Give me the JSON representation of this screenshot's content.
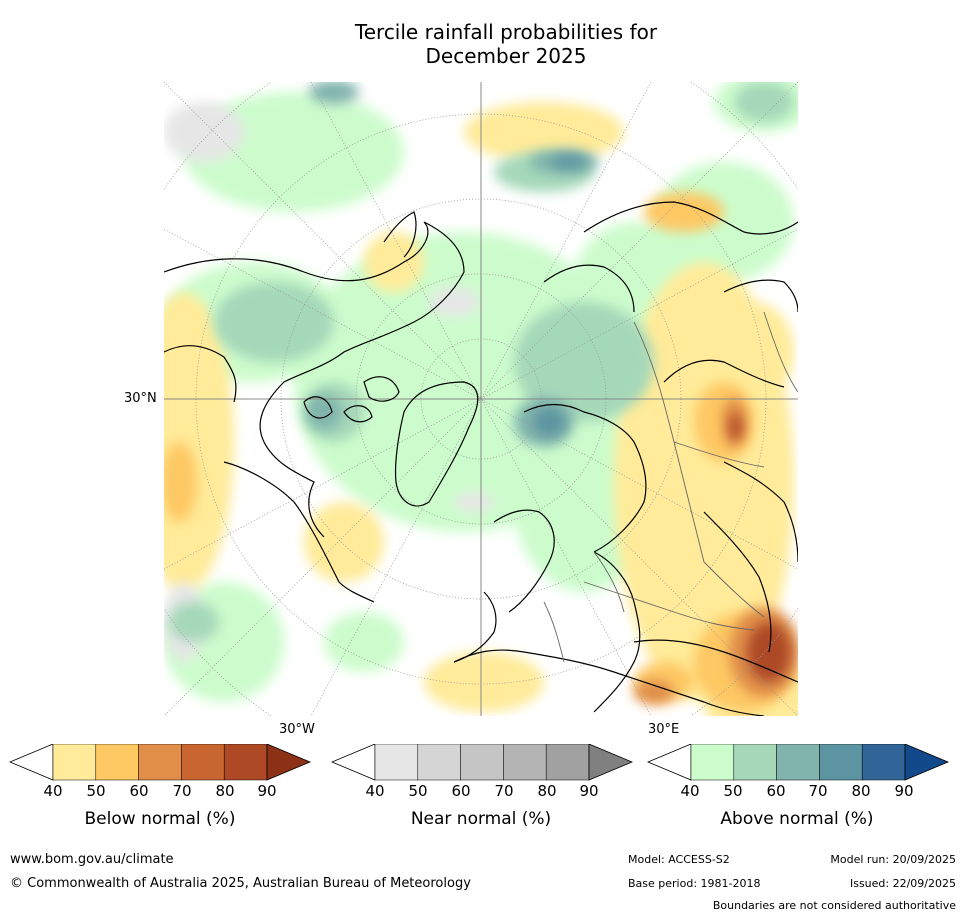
{
  "title": {
    "line1": "Tercile rainfall probabilities for",
    "line2": "December 2025"
  },
  "map": {
    "projection": "north-polar stereographic",
    "lat_labels": [
      "30°N"
    ],
    "lon_labels": [
      "30°W",
      "30°E"
    ]
  },
  "colorbars": [
    {
      "label": "Below normal (%)",
      "ticks": [
        "40",
        "50",
        "60",
        "70",
        "80",
        "90"
      ],
      "colors": [
        "#ffffff",
        "#ffeb99",
        "#fec863",
        "#e08e48",
        "#c9652f",
        "#ad4925",
        "#8c3016"
      ]
    },
    {
      "label": "Near normal (%)",
      "ticks": [
        "40",
        "50",
        "60",
        "70",
        "80",
        "90"
      ],
      "colors": [
        "#ffffff",
        "#e6e6e6",
        "#d5d5d5",
        "#c5c5c5",
        "#b3b4b3",
        "#a1a1a1",
        "#808080"
      ]
    },
    {
      "label": "Above normal (%)",
      "ticks": [
        "40",
        "50",
        "60",
        "70",
        "80",
        "90"
      ],
      "colors": [
        "#ffffff",
        "#ccfccc",
        "#a5d8b9",
        "#80b4ac",
        "#5c94a1",
        "#316598",
        "#11498a"
      ]
    }
  ],
  "footer": {
    "website": "www.bom.gov.au/climate",
    "copyright": "© Commonwealth of Australia 2025, Australian Bureau of Meteorology",
    "model": "Model: ACCESS-S2",
    "base_period": "Base period: 1981-2018",
    "model_run": "Model run: 20/09/2025",
    "issued": "Issued: 22/09/2025",
    "disclaimer": "Boundaries are not considered authoritative"
  }
}
